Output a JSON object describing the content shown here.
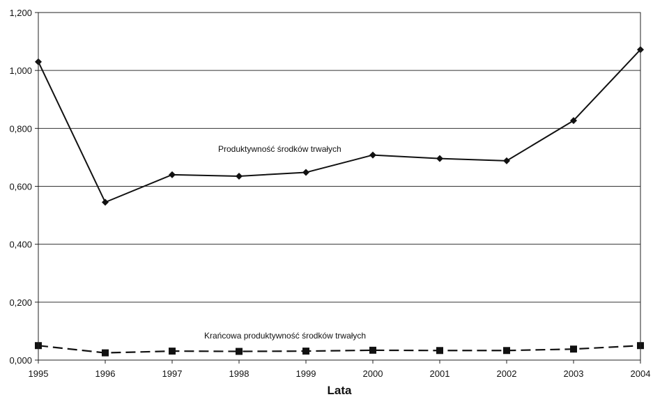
{
  "chart_data": {
    "type": "line",
    "x": [
      "1995",
      "1996",
      "1997",
      "1998",
      "1999",
      "2000",
      "2001",
      "2002",
      "2003",
      "2004"
    ],
    "xlabel": "Lata",
    "ylabel": "",
    "ylim": [
      0,
      1.2
    ],
    "y_ticks": [
      "0,000",
      "0,200",
      "0,400",
      "0,600",
      "0,800",
      "1,000",
      "1,200"
    ],
    "grid": "horizontal",
    "series": [
      {
        "name": "Produktywność środków trwałych",
        "values": [
          1.03,
          0.545,
          0.64,
          0.635,
          0.648,
          0.708,
          0.696,
          0.688,
          0.827,
          1.072
        ],
        "marker": "diamond",
        "line": "solid",
        "color": "#111111"
      },
      {
        "name": "Krańcowa produktywność środków trwałych",
        "values": [
          0.05,
          0.025,
          0.031,
          0.03,
          0.031,
          0.034,
          0.033,
          0.033,
          0.038,
          0.05
        ],
        "marker": "square",
        "line": "dashed",
        "color": "#111111"
      }
    ]
  }
}
